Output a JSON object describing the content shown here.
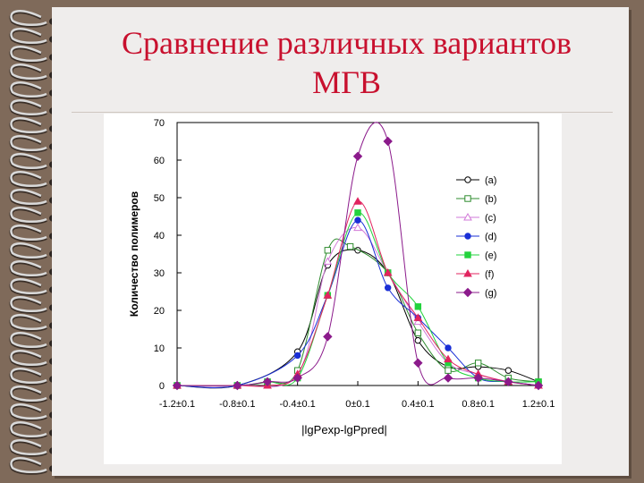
{
  "slide": {
    "title_line1": "Сравнение различных вариантов",
    "title_line2": "МГВ"
  },
  "colors": {
    "background": "#7f6a5a",
    "paper": "#efedec",
    "title": "#c8102e",
    "spiral_metal": "#d9d9d9"
  },
  "chart_data": {
    "type": "line",
    "xlabel": "|lgPexp-lgPpred|",
    "ylabel": "Количество полимеров",
    "ylim": [
      0,
      70
    ],
    "yticks": [
      0,
      10,
      20,
      30,
      40,
      50,
      60,
      70
    ],
    "xlim": [
      -1.2,
      1.2
    ],
    "xticks": [
      {
        "x": -1.2,
        "label": "-1.2±0.1"
      },
      {
        "x": -0.8,
        "label": "-0.8±0.1"
      },
      {
        "x": -0.4,
        "label": "-0.4±0.1"
      },
      {
        "x": 0.0,
        "label": "0±0.1"
      },
      {
        "x": 0.4,
        "label": "0.4±0.1"
      },
      {
        "x": 0.8,
        "label": "0.8±0.1"
      },
      {
        "x": 1.2,
        "label": "1.2±0.1"
      }
    ],
    "grid": false,
    "legend_position": "right",
    "series": [
      {
        "name": "(a)",
        "color": "#000000",
        "marker": "circle-open",
        "points": [
          [
            -1.2,
            0
          ],
          [
            -0.8,
            0
          ],
          [
            -0.4,
            9
          ],
          [
            -0.2,
            32
          ],
          [
            0.0,
            36
          ],
          [
            0.2,
            30
          ],
          [
            0.4,
            12
          ],
          [
            0.6,
            5
          ],
          [
            0.8,
            5
          ],
          [
            1.0,
            4
          ],
          [
            1.2,
            1
          ]
        ]
      },
      {
        "name": "(b)",
        "color": "#2e8b2e",
        "marker": "square-open",
        "points": [
          [
            -1.2,
            0
          ],
          [
            -0.8,
            0
          ],
          [
            -0.6,
            1
          ],
          [
            -0.4,
            4
          ],
          [
            -0.2,
            36
          ],
          [
            -0.05,
            37
          ],
          [
            0.2,
            30
          ],
          [
            0.4,
            14
          ],
          [
            0.6,
            4
          ],
          [
            0.8,
            6
          ],
          [
            1.0,
            2
          ],
          [
            1.2,
            1
          ]
        ]
      },
      {
        "name": "(c)",
        "color": "#d27ad8",
        "marker": "tri-open",
        "points": [
          [
            -1.2,
            0
          ],
          [
            -0.8,
            0
          ],
          [
            -0.4,
            3
          ],
          [
            -0.2,
            33
          ],
          [
            0.0,
            42
          ],
          [
            0.2,
            30
          ],
          [
            0.4,
            17
          ],
          [
            0.6,
            6
          ],
          [
            0.8,
            3
          ],
          [
            1.0,
            1
          ],
          [
            1.2,
            0
          ]
        ]
      },
      {
        "name": "(d)",
        "color": "#1a2fd6",
        "marker": "circle",
        "points": [
          [
            -1.2,
            0
          ],
          [
            -0.8,
            0
          ],
          [
            -0.4,
            8
          ],
          [
            -0.2,
            24
          ],
          [
            0.0,
            44
          ],
          [
            0.2,
            26
          ],
          [
            0.4,
            18
          ],
          [
            0.6,
            10
          ],
          [
            0.8,
            2
          ],
          [
            1.0,
            1
          ],
          [
            1.2,
            0
          ]
        ]
      },
      {
        "name": "(e)",
        "color": "#22d33c",
        "marker": "square",
        "points": [
          [
            -1.2,
            0
          ],
          [
            -0.8,
            0
          ],
          [
            -0.6,
            1
          ],
          [
            -0.4,
            2
          ],
          [
            -0.2,
            24
          ],
          [
            0.0,
            46
          ],
          [
            0.2,
            30
          ],
          [
            0.4,
            21
          ],
          [
            0.6,
            6
          ],
          [
            0.8,
            2
          ],
          [
            1.0,
            1
          ],
          [
            1.2,
            1
          ]
        ]
      },
      {
        "name": "(f)",
        "color": "#e1245f",
        "marker": "triangle",
        "points": [
          [
            -1.2,
            0
          ],
          [
            -0.8,
            0
          ],
          [
            -0.6,
            0
          ],
          [
            -0.4,
            3
          ],
          [
            -0.2,
            24
          ],
          [
            0.0,
            49
          ],
          [
            0.2,
            30
          ],
          [
            0.4,
            18
          ],
          [
            0.6,
            7
          ],
          [
            0.8,
            3
          ],
          [
            1.0,
            1
          ],
          [
            1.2,
            0
          ]
        ]
      },
      {
        "name": "(g)",
        "color": "#8b1a8b",
        "marker": "diamond",
        "points": [
          [
            -1.2,
            0
          ],
          [
            -0.8,
            0
          ],
          [
            -0.6,
            1
          ],
          [
            -0.4,
            2
          ],
          [
            -0.2,
            13
          ],
          [
            0.0,
            61
          ],
          [
            0.2,
            65
          ],
          [
            0.4,
            6
          ],
          [
            0.6,
            2
          ],
          [
            0.8,
            2
          ],
          [
            1.0,
            1
          ],
          [
            1.2,
            0
          ]
        ]
      }
    ]
  }
}
